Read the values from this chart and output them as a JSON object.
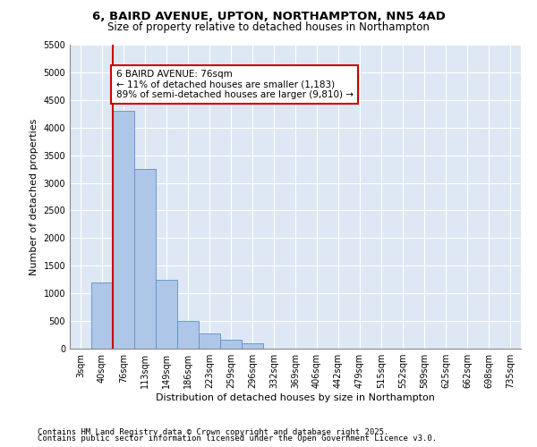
{
  "title_line1": "6, BAIRD AVENUE, UPTON, NORTHAMPTON, NN5 4AD",
  "title_line2": "Size of property relative to detached houses in Northampton",
  "xlabel": "Distribution of detached houses by size in Northampton",
  "ylabel": "Number of detached properties",
  "bar_categories": [
    "3sqm",
    "40sqm",
    "76sqm",
    "113sqm",
    "149sqm",
    "186sqm",
    "223sqm",
    "259sqm",
    "296sqm",
    "332sqm",
    "369sqm",
    "406sqm",
    "442sqm",
    "479sqm",
    "515sqm",
    "552sqm",
    "589sqm",
    "625sqm",
    "662sqm",
    "698sqm",
    "735sqm"
  ],
  "bar_values": [
    0,
    1200,
    4300,
    3250,
    1250,
    500,
    270,
    160,
    100,
    0,
    0,
    0,
    0,
    0,
    0,
    0,
    0,
    0,
    0,
    0,
    0
  ],
  "bar_color": "#aec6e8",
  "bar_edge_color": "#5b8fc8",
  "annotation_text": "6 BAIRD AVENUE: 76sqm\n← 11% of detached houses are smaller (1,183)\n89% of semi-detached houses are larger (9,810) →",
  "annotation_box_color": "#ffffff",
  "annotation_box_edge": "#cc0000",
  "red_line_color": "#cc0000",
  "ylim": [
    0,
    5500
  ],
  "yticks": [
    0,
    500,
    1000,
    1500,
    2000,
    2500,
    3000,
    3500,
    4000,
    4500,
    5000,
    5500
  ],
  "background_color": "#dde8f4",
  "footer_line1": "Contains HM Land Registry data © Crown copyright and database right 2025.",
  "footer_line2": "Contains public sector information licensed under the Open Government Licence v3.0.",
  "title_fontsize": 9.5,
  "subtitle_fontsize": 8.5,
  "axis_label_fontsize": 8,
  "tick_fontsize": 7,
  "footer_fontsize": 6.5,
  "annotation_fontsize": 7.5
}
